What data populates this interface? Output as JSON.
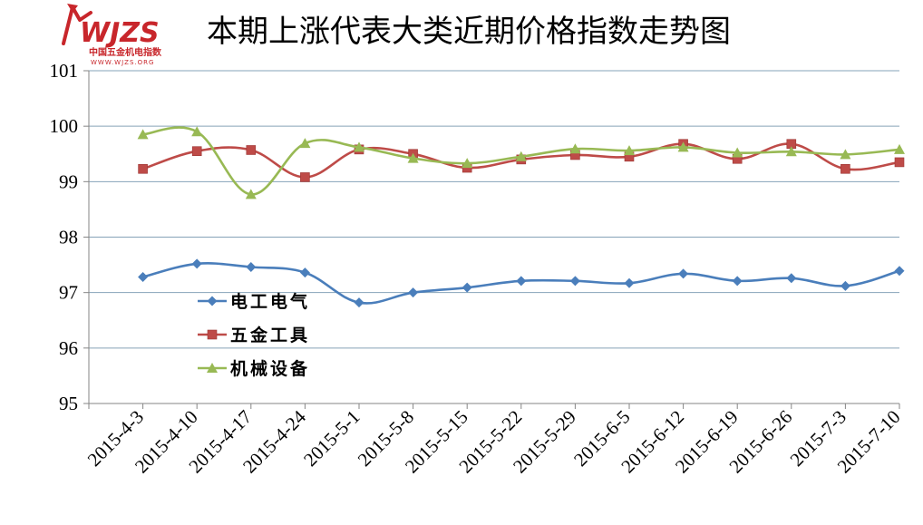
{
  "logo": {
    "text": "WJZS",
    "subtitle": "中国五金机电指数",
    "url": "WWW.WJZS.ORG",
    "color": "#c8262b"
  },
  "chart_data": {
    "type": "line",
    "title": "本期上涨代表大类近期价格指数走势图",
    "xlabel": "",
    "ylabel": "",
    "ylim": [
      95,
      101
    ],
    "yticks": [
      95,
      96,
      97,
      98,
      99,
      100,
      101
    ],
    "grid": true,
    "legend_position": "left-center",
    "categories": [
      "2015-4-3",
      "2015-4-10",
      "2015-4-17",
      "2015-4-24",
      "2015-5-1",
      "2015-5-8",
      "2015-5-15",
      "2015-5-22",
      "2015-5-29",
      "2015-6-5",
      "2015-6-12",
      "2015-6-19",
      "2015-6-26",
      "2015-7-3",
      "2015-7-10"
    ],
    "series": [
      {
        "name": "电工电气",
        "color": "#4a7ebb",
        "marker": "diamond",
        "values": [
          97.28,
          97.52,
          97.46,
          97.36,
          96.82,
          97.0,
          97.09,
          97.21,
          97.21,
          97.17,
          97.34,
          97.21,
          97.26,
          97.12,
          97.39
        ]
      },
      {
        "name": "五金工具",
        "color": "#be4b48",
        "marker": "square",
        "values": [
          99.23,
          99.55,
          99.57,
          99.08,
          99.58,
          99.5,
          99.25,
          99.4,
          99.48,
          99.45,
          99.68,
          99.41,
          99.68,
          99.23,
          99.35
        ]
      },
      {
        "name": "机械设备",
        "color": "#98b954",
        "marker": "triangle",
        "values": [
          99.85,
          99.9,
          98.77,
          99.69,
          99.62,
          99.42,
          99.33,
          99.45,
          99.59,
          99.56,
          99.62,
          99.52,
          99.54,
          99.49,
          99.58
        ]
      }
    ]
  }
}
